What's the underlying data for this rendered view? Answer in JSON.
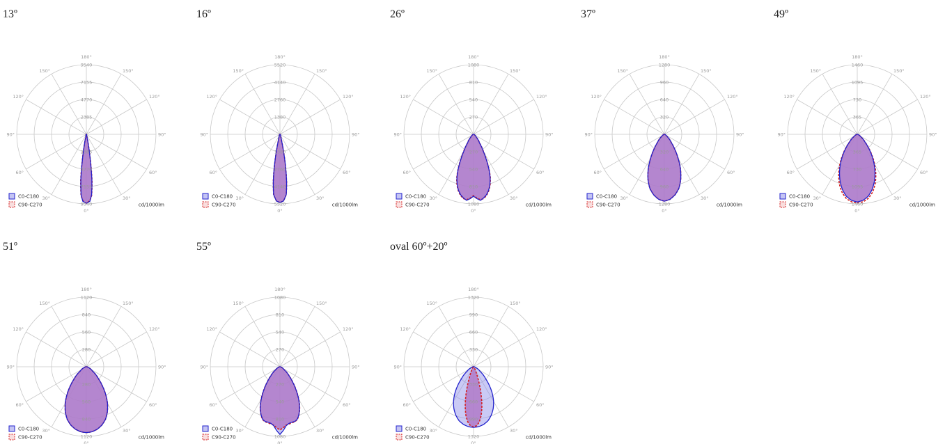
{
  "theme": {
    "c0_stroke": "#2222cc",
    "c0_fill": "#8a8ae8",
    "c90_stroke": "#d42020",
    "overlap_fill": "#b07ac8",
    "grid": "#c8c8c8"
  },
  "legend": {
    "c0": "C0-C180",
    "c90": "C90-C270",
    "unit": "cd/1000lm"
  },
  "angle_labels": {
    "top": "180°",
    "upper_side": "150°",
    "mid_upper_side": "120°",
    "side": "90°",
    "lower_side": "60°",
    "lower_inner": "30°",
    "bottom": "0°"
  },
  "chart_data": [
    {
      "type": "polar",
      "title": "13º",
      "ring_values": [
        "2385",
        "4770",
        "7155",
        "9540"
      ],
      "rmax": 9540,
      "series": [
        {
          "name": "C0-C180",
          "points": [
            [
              0,
              9450
            ],
            [
              3,
              9200
            ],
            [
              5,
              8300
            ],
            [
              7,
              6200
            ],
            [
              9,
              3300
            ],
            [
              11,
              1300
            ],
            [
              13,
              400
            ],
            [
              18,
              150
            ],
            [
              30,
              80
            ],
            [
              60,
              40
            ],
            [
              90,
              15
            ]
          ]
        },
        {
          "name": "C90-C270",
          "points": [
            [
              0,
              9450
            ],
            [
              3,
              9100
            ],
            [
              5,
              8400
            ],
            [
              7,
              6400
            ],
            [
              9,
              3500
            ],
            [
              11,
              1400
            ],
            [
              13,
              420
            ],
            [
              18,
              160
            ],
            [
              30,
              80
            ],
            [
              60,
              40
            ],
            [
              90,
              15
            ]
          ]
        }
      ]
    },
    {
      "type": "polar",
      "title": "16º",
      "ring_values": [
        "1380",
        "2760",
        "4140",
        "5520"
      ],
      "rmax": 5520,
      "series": [
        {
          "name": "C0-C180",
          "points": [
            [
              0,
              5400
            ],
            [
              3,
              5300
            ],
            [
              6,
              4800
            ],
            [
              8,
              3800
            ],
            [
              10,
              2500
            ],
            [
              12,
              1300
            ],
            [
              14,
              600
            ],
            [
              18,
              220
            ],
            [
              30,
              80
            ],
            [
              60,
              30
            ],
            [
              90,
              10
            ]
          ]
        },
        {
          "name": "C90-C270",
          "points": [
            [
              0,
              5400
            ],
            [
              3,
              5300
            ],
            [
              6,
              4800
            ],
            [
              8,
              3800
            ],
            [
              10,
              2500
            ],
            [
              12,
              1300
            ],
            [
              14,
              600
            ],
            [
              18,
              220
            ],
            [
              30,
              80
            ],
            [
              60,
              30
            ],
            [
              90,
              10
            ]
          ]
        }
      ]
    },
    {
      "type": "polar",
      "title": "26º",
      "ring_values": [
        "270",
        "540",
        "810",
        "1080"
      ],
      "rmax": 1080,
      "series": [
        {
          "name": "C0-C180",
          "points": [
            [
              0,
              960
            ],
            [
              3,
              1000
            ],
            [
              6,
              1030
            ],
            [
              9,
              1000
            ],
            [
              12,
              960
            ],
            [
              15,
              900
            ],
            [
              18,
              820
            ],
            [
              21,
              720
            ],
            [
              24,
              580
            ],
            [
              27,
              430
            ],
            [
              30,
              300
            ],
            [
              35,
              160
            ],
            [
              45,
              60
            ],
            [
              60,
              20
            ],
            [
              90,
              5
            ]
          ]
        },
        {
          "name": "C90-C270",
          "points": [
            [
              0,
              950
            ],
            [
              3,
              990
            ],
            [
              6,
              1020
            ],
            [
              9,
              1010
            ],
            [
              12,
              970
            ],
            [
              15,
              910
            ],
            [
              18,
              830
            ],
            [
              21,
              730
            ],
            [
              24,
              590
            ],
            [
              27,
              440
            ],
            [
              30,
              310
            ],
            [
              35,
              165
            ],
            [
              45,
              60
            ],
            [
              60,
              20
            ],
            [
              90,
              5
            ]
          ]
        }
      ]
    },
    {
      "type": "polar",
      "title": "37º",
      "ring_values": [
        "320",
        "640",
        "960",
        "1280"
      ],
      "rmax": 1280,
      "series": [
        {
          "name": "C0-C180",
          "points": [
            [
              0,
              1230
            ],
            [
              5,
              1200
            ],
            [
              10,
              1130
            ],
            [
              15,
              1030
            ],
            [
              20,
              880
            ],
            [
              25,
              700
            ],
            [
              30,
              500
            ],
            [
              35,
              330
            ],
            [
              40,
              200
            ],
            [
              50,
              80
            ],
            [
              60,
              30
            ],
            [
              90,
              5
            ]
          ]
        },
        {
          "name": "C90-C270",
          "points": [
            [
              0,
              1230
            ],
            [
              5,
              1200
            ],
            [
              10,
              1130
            ],
            [
              15,
              1030
            ],
            [
              20,
              880
            ],
            [
              25,
              700
            ],
            [
              30,
              500
            ],
            [
              35,
              330
            ],
            [
              40,
              200
            ],
            [
              50,
              80
            ],
            [
              60,
              30
            ],
            [
              90,
              5
            ]
          ]
        }
      ]
    },
    {
      "type": "polar",
      "title": "49º",
      "ring_values": [
        "365",
        "730",
        "1095",
        "1460"
      ],
      "rmax": 1460,
      "series": [
        {
          "name": "C0-C180",
          "points": [
            [
              0,
              1420
            ],
            [
              5,
              1390
            ],
            [
              10,
              1320
            ],
            [
              15,
              1200
            ],
            [
              20,
              1050
            ],
            [
              25,
              880
            ],
            [
              30,
              700
            ],
            [
              35,
              520
            ],
            [
              40,
              360
            ],
            [
              45,
              230
            ],
            [
              55,
              90
            ],
            [
              70,
              25
            ],
            [
              90,
              5
            ]
          ]
        },
        {
          "name": "C90-C270",
          "points": [
            [
              0,
              1440
            ],
            [
              5,
              1420
            ],
            [
              10,
              1360
            ],
            [
              15,
              1250
            ],
            [
              20,
              1100
            ],
            [
              25,
              920
            ],
            [
              30,
              730
            ],
            [
              35,
              540
            ],
            [
              40,
              370
            ],
            [
              45,
              235
            ],
            [
              55,
              90
            ],
            [
              70,
              25
            ],
            [
              90,
              5
            ]
          ]
        }
      ]
    },
    {
      "type": "polar",
      "title": "51º",
      "ring_values": [
        "280",
        "560",
        "840",
        "1120"
      ],
      "rmax": 1120,
      "series": [
        {
          "name": "C0-C180",
          "points": [
            [
              0,
              1060
            ],
            [
              5,
              1050
            ],
            [
              10,
              1020
            ],
            [
              15,
              970
            ],
            [
              20,
              900
            ],
            [
              25,
              800
            ],
            [
              30,
              680
            ],
            [
              35,
              540
            ],
            [
              40,
              400
            ],
            [
              45,
              280
            ],
            [
              55,
              120
            ],
            [
              70,
              35
            ],
            [
              90,
              5
            ]
          ]
        },
        {
          "name": "C90-C270",
          "points": [
            [
              0,
              1060
            ],
            [
              5,
              1050
            ],
            [
              10,
              1020
            ],
            [
              15,
              970
            ],
            [
              20,
              900
            ],
            [
              25,
              800
            ],
            [
              30,
              680
            ],
            [
              35,
              540
            ],
            [
              40,
              400
            ],
            [
              45,
              280
            ],
            [
              55,
              120
            ],
            [
              70,
              35
            ],
            [
              90,
              5
            ]
          ]
        }
      ]
    },
    {
      "type": "polar",
      "title": "55º",
      "ring_values": [
        "270",
        "540",
        "810",
        "1080"
      ],
      "rmax": 1080,
      "series": [
        {
          "name": "C0-C180",
          "points": [
            [
              0,
              1050
            ],
            [
              3,
              990
            ],
            [
              6,
              920
            ],
            [
              9,
              890
            ],
            [
              12,
              880
            ],
            [
              15,
              880
            ],
            [
              18,
              860
            ],
            [
              21,
              810
            ],
            [
              25,
              720
            ],
            [
              30,
              580
            ],
            [
              35,
              430
            ],
            [
              40,
              300
            ],
            [
              45,
              200
            ],
            [
              55,
              80
            ],
            [
              70,
              20
            ],
            [
              90,
              5
            ]
          ]
        },
        {
          "name": "C90-C270",
          "points": [
            [
              0,
              980
            ],
            [
              3,
              950
            ],
            [
              6,
              910
            ],
            [
              9,
              900
            ],
            [
              12,
              890
            ],
            [
              15,
              885
            ],
            [
              18,
              865
            ],
            [
              21,
              815
            ],
            [
              25,
              725
            ],
            [
              30,
              585
            ],
            [
              35,
              435
            ],
            [
              40,
              305
            ],
            [
              45,
              205
            ],
            [
              55,
              80
            ],
            [
              70,
              20
            ],
            [
              90,
              5
            ]
          ]
        }
      ]
    },
    {
      "type": "polar",
      "title": "oval 60º+20º",
      "ring_values": [
        "330",
        "660",
        "990",
        "1320"
      ],
      "rmax": 1320,
      "series": [
        {
          "name": "C0-C180",
          "points": [
            [
              0,
              1150
            ],
            [
              5,
              1140
            ],
            [
              10,
              1110
            ],
            [
              15,
              1060
            ],
            [
              20,
              980
            ],
            [
              25,
              880
            ],
            [
              30,
              760
            ],
            [
              35,
              620
            ],
            [
              40,
              470
            ],
            [
              45,
              330
            ],
            [
              55,
              150
            ],
            [
              70,
              40
            ],
            [
              90,
              5
            ]
          ]
        },
        {
          "name": "C90-C270",
          "points": [
            [
              0,
              1140
            ],
            [
              3,
              1120
            ],
            [
              6,
              1050
            ],
            [
              9,
              930
            ],
            [
              12,
              760
            ],
            [
              15,
              560
            ],
            [
              18,
              370
            ],
            [
              21,
              220
            ],
            [
              25,
              110
            ],
            [
              30,
              50
            ],
            [
              40,
              15
            ],
            [
              60,
              5
            ],
            [
              90,
              2
            ]
          ]
        }
      ]
    }
  ]
}
